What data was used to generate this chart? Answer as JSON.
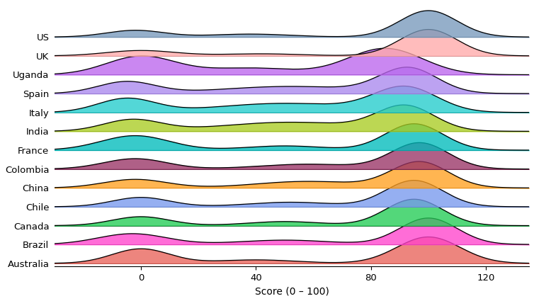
{
  "countries": [
    "Australia",
    "Brazil",
    "Canada",
    "Chile",
    "China",
    "Colombia",
    "France",
    "India",
    "Italy",
    "Spain",
    "Uganda",
    "UK",
    "US"
  ],
  "colors": [
    "#E8635A",
    "#FF44CC",
    "#22CC55",
    "#7799EE",
    "#FFA020",
    "#993366",
    "#00BBBB",
    "#AACC22",
    "#22CCCC",
    "#AA88EE",
    "#BB66EE",
    "#FFAAAA",
    "#7799BB"
  ],
  "xlim": [
    -30,
    135
  ],
  "xticks": [
    0,
    40,
    80,
    120
  ],
  "xlabel": "Score (0 – 100)",
  "overlap": 1.4,
  "densities": {
    "Australia": {
      "peaks": [
        0,
        40,
        100
      ],
      "weights": [
        0.3,
        0.1,
        0.6
      ],
      "stds": [
        10,
        14,
        11
      ]
    },
    "Brazil": {
      "peaks": [
        -3,
        50,
        100
      ],
      "weights": [
        0.28,
        0.15,
        0.57
      ],
      "stds": [
        12,
        16,
        10
      ]
    },
    "Canada": {
      "peaks": [
        0,
        50,
        95
      ],
      "weights": [
        0.22,
        0.13,
        0.65
      ],
      "stds": [
        10,
        13,
        10
      ]
    },
    "Chile": {
      "peaks": [
        0,
        52,
        95
      ],
      "weights": [
        0.22,
        0.16,
        0.62
      ],
      "stds": [
        10,
        15,
        10
      ]
    },
    "China": {
      "peaks": [
        -2,
        58,
        97
      ],
      "weights": [
        0.2,
        0.25,
        0.55
      ],
      "stds": [
        11,
        18,
        10
      ]
    },
    "Colombia": {
      "peaks": [
        -2,
        58,
        97
      ],
      "weights": [
        0.25,
        0.18,
        0.57
      ],
      "stds": [
        11,
        17,
        10
      ]
    },
    "France": {
      "peaks": [
        -2,
        50,
        95
      ],
      "weights": [
        0.35,
        0.12,
        0.53
      ],
      "stds": [
        12,
        14,
        10
      ]
    },
    "India": {
      "peaks": [
        -3,
        52,
        92
      ],
      "weights": [
        0.2,
        0.38,
        0.42
      ],
      "stds": [
        10,
        24,
        10
      ]
    },
    "Italy": {
      "peaks": [
        -5,
        50,
        92
      ],
      "weights": [
        0.22,
        0.35,
        0.43
      ],
      "stds": [
        10,
        24,
        11
      ]
    },
    "Spain": {
      "peaks": [
        -5,
        52,
        93
      ],
      "weights": [
        0.22,
        0.32,
        0.46
      ],
      "stds": [
        10,
        24,
        10
      ]
    },
    "Uganda": {
      "peaks": [
        0,
        38,
        85
      ],
      "weights": [
        0.33,
        0.16,
        0.51
      ],
      "stds": [
        12,
        16,
        13
      ]
    },
    "UK": {
      "peaks": [
        0,
        42,
        100
      ],
      "weights": [
        0.18,
        0.08,
        0.74
      ],
      "stds": [
        12,
        14,
        10
      ]
    },
    "US": {
      "peaks": [
        -2,
        38,
        100
      ],
      "weights": [
        0.18,
        0.11,
        0.71
      ],
      "stds": [
        10,
        14,
        10
      ]
    }
  }
}
